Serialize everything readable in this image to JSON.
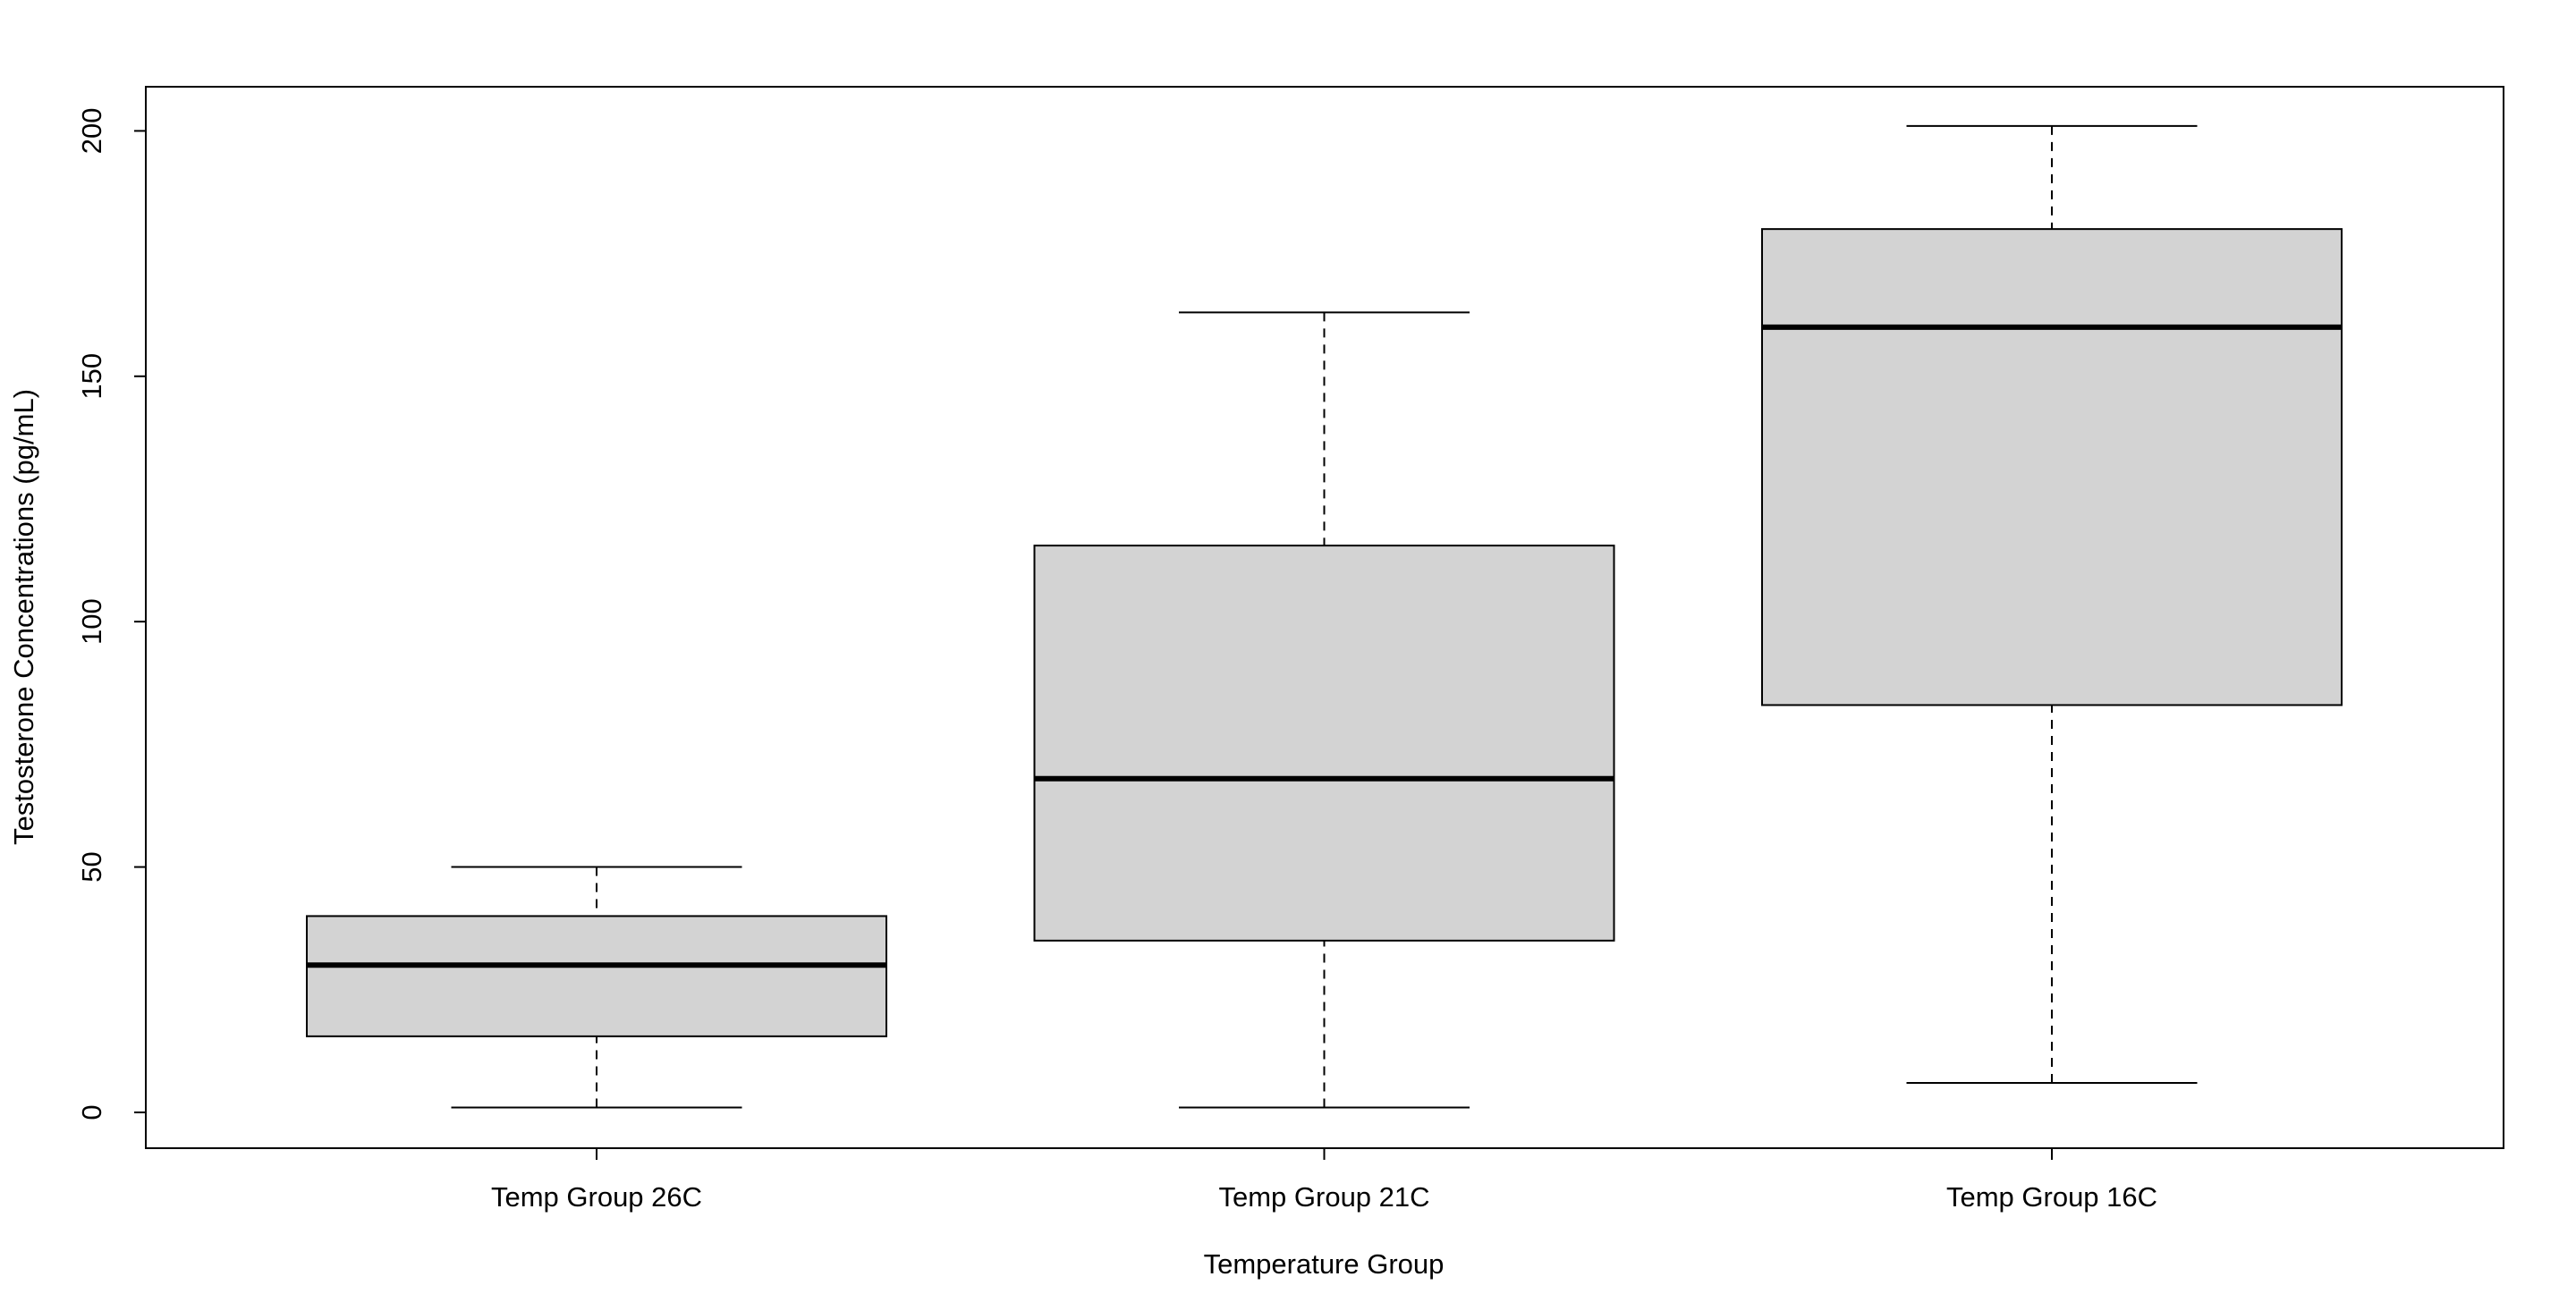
{
  "chart_data": {
    "type": "box",
    "xlabel": "Temperature Group",
    "ylabel": "Testosterone Concentrations (pg/mL)",
    "categories": [
      "Temp Group 26C",
      "Temp Group 21C",
      "Temp Group 16C"
    ],
    "boxes": [
      {
        "min": 1,
        "q1": 15.5,
        "median": 30,
        "q3": 40,
        "max": 50
      },
      {
        "min": 1,
        "q1": 35,
        "median": 68,
        "q3": 115.5,
        "max": 163
      },
      {
        "min": 6,
        "q1": 83,
        "median": 160,
        "q3": 180,
        "max": 201
      }
    ],
    "color": "#d3d3d3",
    "ylim": [
      -7.3,
      209
    ],
    "yticks": [
      0,
      50,
      100,
      150,
      200
    ]
  }
}
